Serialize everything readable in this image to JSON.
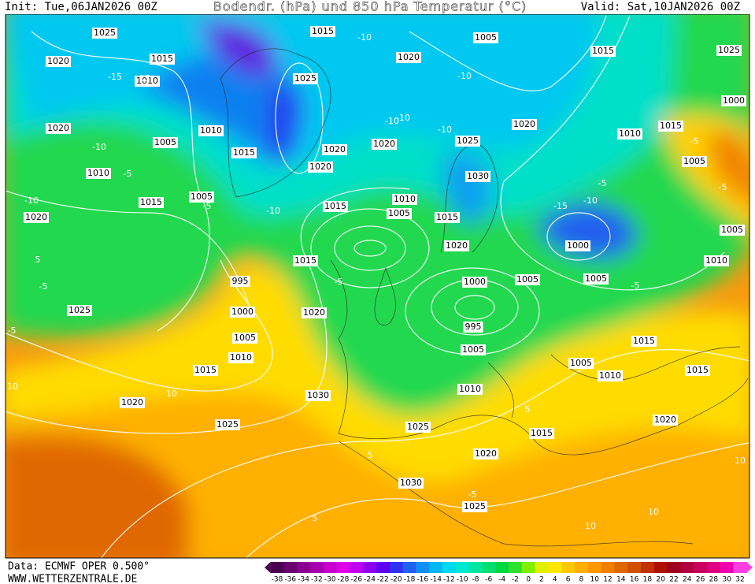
{
  "header": {
    "init": "Init: Tue,06JAN2026 00Z",
    "title": "Bodendr. (hPa) und 850 hPa Temperatur (°C)",
    "valid": "Valid: Sat,10JAN2026 00Z"
  },
  "isobars": [
    1025,
    1015,
    1005,
    1015,
    1025,
    1020,
    1015,
    1020,
    1025,
    1010,
    1000,
    1020,
    1010,
    1020,
    1015,
    1010,
    1005,
    1025,
    1020,
    1020,
    1015,
    1005,
    1020,
    1010,
    1030,
    1005,
    1015,
    1010,
    1015,
    1005,
    1020,
    1015,
    1005,
    1020,
    1000,
    1010,
    1015,
    995,
    1000,
    1005,
    1005,
    1025,
    1000,
    1020,
    995,
    1005,
    1005,
    1015,
    1010,
    1005,
    1015,
    1010,
    1015,
    1030,
    1010,
    1020,
    1020,
    1025,
    1025,
    1015,
    1020,
    1030,
    1025
  ],
  "temperature_labels": [
    -10,
    -15,
    -15,
    -10,
    -10,
    -10,
    -10,
    -15,
    -10,
    -5,
    -5,
    -5,
    -5,
    -10,
    -5,
    5,
    -5,
    -10,
    -10,
    -5,
    -5,
    10,
    10,
    -5,
    5,
    -5,
    5,
    10,
    10,
    5,
    10
  ],
  "legend": {
    "ticks": [
      -38,
      -36,
      -34,
      -32,
      -30,
      -28,
      -26,
      -24,
      -22,
      -20,
      -18,
      -16,
      -14,
      -12,
      -10,
      -8,
      -6,
      -4,
      -2,
      0,
      2,
      4,
      6,
      8,
      10,
      12,
      14,
      16,
      18,
      20,
      22,
      24,
      26,
      28,
      30,
      32
    ],
    "colors": [
      "#4b0050",
      "#6a006f",
      "#8a008f",
      "#a800b0",
      "#c800d0",
      "#e000e8",
      "#c000f0",
      "#9000f0",
      "#6000f0",
      "#3030f0",
      "#2060f0",
      "#1090f0",
      "#00b8f0",
      "#00d8f0",
      "#00e8d0",
      "#00e8a0",
      "#00e070",
      "#00d840",
      "#30e030",
      "#80f000",
      "#e0f000",
      "#ffe800",
      "#ffc800",
      "#ffb000",
      "#ff9800",
      "#f08000",
      "#e06800",
      "#d05000",
      "#c03000",
      "#b01000",
      "#a00020",
      "#b00040",
      "#c80060",
      "#e00080",
      "#f000b0",
      "#ff40e0"
    ]
  },
  "footer": {
    "source": "Data: ECMWF OPER 0.500°",
    "url": "WWW.WETTERZENTRALE.DE"
  }
}
